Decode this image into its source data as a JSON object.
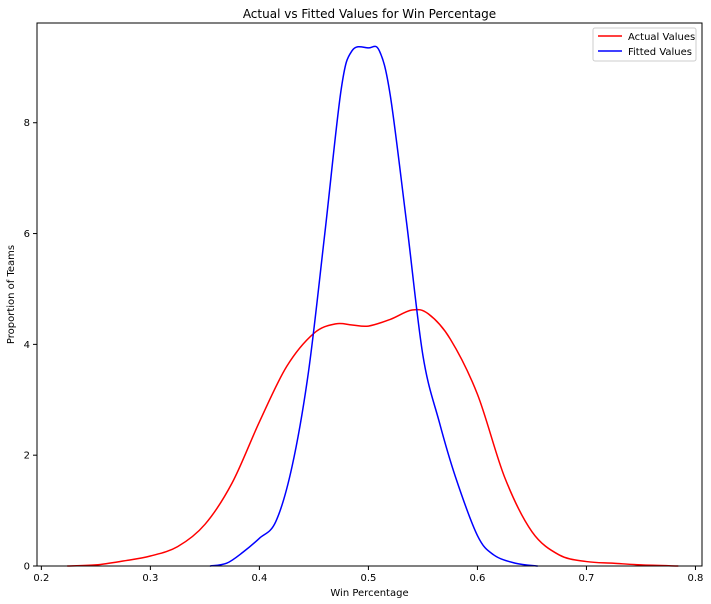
{
  "chart_data": {
    "type": "line",
    "title": "Actual vs Fitted Values for Win Percentage",
    "xlabel": "Win Percentage",
    "ylabel": "Proportion of Teams",
    "xlim": [
      0.196,
      0.806
    ],
    "ylim": [
      0,
      9.8
    ],
    "xticks": [
      0.2,
      0.3,
      0.4,
      0.5,
      0.6,
      0.7,
      0.8
    ],
    "xtick_labels": [
      "0.2",
      "0.3",
      "0.4",
      "0.5",
      "0.6",
      "0.7",
      "0.8"
    ],
    "yticks": [
      0,
      2,
      4,
      6,
      8
    ],
    "ytick_labels": [
      "0",
      "2",
      "4",
      "6",
      "8"
    ],
    "grid": false,
    "legend_position": "top-right",
    "series": [
      {
        "name": "Actual Values",
        "color": "#ff0000",
        "points": [
          [
            0.224,
            0.0
          ],
          [
            0.25,
            0.02
          ],
          [
            0.275,
            0.09
          ],
          [
            0.3,
            0.18
          ],
          [
            0.325,
            0.35
          ],
          [
            0.35,
            0.75
          ],
          [
            0.375,
            1.5
          ],
          [
            0.4,
            2.6
          ],
          [
            0.425,
            3.6
          ],
          [
            0.45,
            4.2
          ],
          [
            0.47,
            4.37
          ],
          [
            0.485,
            4.35
          ],
          [
            0.5,
            4.33
          ],
          [
            0.52,
            4.45
          ],
          [
            0.54,
            4.62
          ],
          [
            0.555,
            4.55
          ],
          [
            0.575,
            4.1
          ],
          [
            0.6,
            3.1
          ],
          [
            0.625,
            1.6
          ],
          [
            0.65,
            0.62
          ],
          [
            0.675,
            0.2
          ],
          [
            0.7,
            0.08
          ],
          [
            0.725,
            0.05
          ],
          [
            0.75,
            0.02
          ],
          [
            0.784,
            0.0
          ]
        ]
      },
      {
        "name": "Fitted Values",
        "color": "#0000ff",
        "points": [
          [
            0.355,
            0.0
          ],
          [
            0.37,
            0.05
          ],
          [
            0.385,
            0.25
          ],
          [
            0.4,
            0.5
          ],
          [
            0.415,
            0.8
          ],
          [
            0.43,
            1.8
          ],
          [
            0.445,
            3.5
          ],
          [
            0.46,
            6.0
          ],
          [
            0.475,
            8.6
          ],
          [
            0.485,
            9.3
          ],
          [
            0.5,
            9.35
          ],
          [
            0.51,
            9.3
          ],
          [
            0.52,
            8.5
          ],
          [
            0.535,
            6.2
          ],
          [
            0.55,
            3.8
          ],
          [
            0.565,
            2.6
          ],
          [
            0.58,
            1.6
          ],
          [
            0.6,
            0.55
          ],
          [
            0.615,
            0.2
          ],
          [
            0.635,
            0.05
          ],
          [
            0.655,
            0.0
          ]
        ]
      }
    ]
  }
}
